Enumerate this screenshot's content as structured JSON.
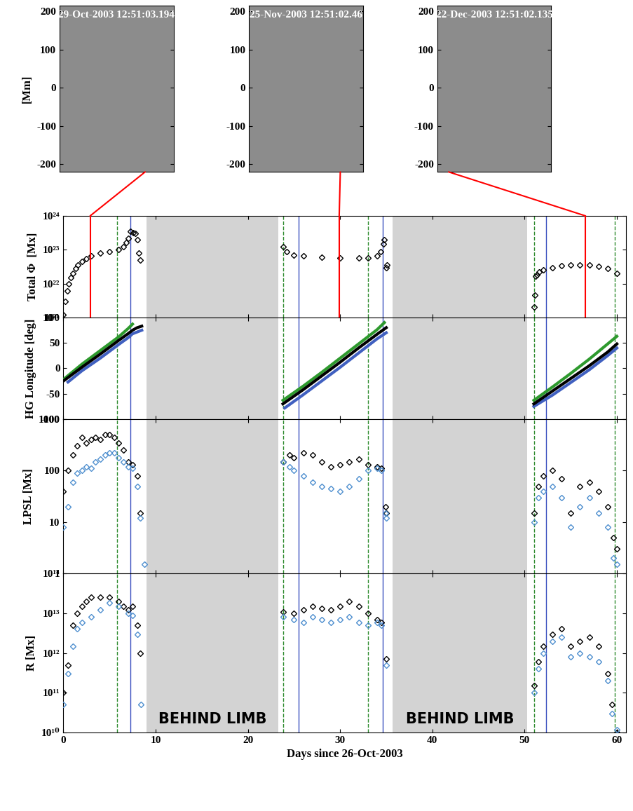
{
  "chart_data": [
    {
      "type": "image",
      "title": "29-Oct-2003 12:51:03.194",
      "ylabel": "[Mm]",
      "x": 2.9,
      "color": "red",
      "xlim": [
        -220,
        215
      ],
      "xticks": [],
      "ylim": [
        -220,
        215
      ],
      "yticks": [
        -200,
        -100,
        0,
        100,
        200
      ],
      "tick_labels": "y"
    },
    {
      "type": "image",
      "title": "25-Nov-2003 12:51:02.46",
      "x": 29.9,
      "color": "red",
      "xlim": [
        -220,
        215
      ],
      "xticks": [],
      "ylim": [
        -220,
        215
      ],
      "yticks": [
        -200,
        -100,
        0,
        100,
        200
      ],
      "tick_labels": "y"
    },
    {
      "type": "image",
      "title": "22-Dec-2003 12:51:02.135",
      "x": 56.6,
      "color": "red",
      "xlim": [
        -220,
        215
      ],
      "xticks": [],
      "ylim": [
        -220,
        215
      ],
      "yticks": [
        -200,
        -100,
        0,
        100,
        200
      ],
      "tick_labels": "y"
    },
    {
      "type": "scatter",
      "ylabel": "Total Φ  [Mx]",
      "log": "y",
      "tick_labels": "y",
      "xlim": [
        0,
        61
      ],
      "xticks": [
        0,
        10,
        20,
        30,
        40,
        50,
        60
      ],
      "ylim": [
        1e+21,
        1e+24
      ],
      "yticks": [
        {
          "value": 1e+21,
          "label": "10²¹"
        },
        {
          "value": 1e+22,
          "label": "10²²"
        },
        {
          "value": 1e+23,
          "label": "10²³"
        },
        {
          "value": 1e+24,
          "label": "10²⁴"
        }
      ],
      "shaded": [
        {
          "x": [
            9,
            23.3
          ]
        },
        {
          "x": [
            35.7,
            50.3
          ]
        }
      ],
      "vlines": [
        {
          "x": [
            5.8,
            23.8,
            33.0,
            51.0,
            59.8
          ],
          "color": "#2e8b2e",
          "line_style": "dashed"
        },
        {
          "x": [
            7.3,
            25.5,
            34.6,
            52.3
          ],
          "color": "#3a4fbf",
          "line_style": "solid"
        }
      ],
      "series": [
        {
          "color": "#000000",
          "marker": "diamond",
          "x": [
            0,
            0.2,
            0.4,
            0.6,
            0.8,
            1.0,
            1.3,
            1.6,
            2.0,
            2.5,
            3.0,
            4.0,
            5.0,
            6.0,
            6.5,
            6.8,
            7.0,
            7.3,
            7.6,
            7.8,
            8.0,
            8.2,
            8.3,
            23.8,
            24.2,
            25.0,
            26.0,
            28.0,
            30.0,
            32.0,
            33.0,
            34.0,
            34.4,
            34.7,
            34.8,
            35.0,
            35.1,
            51.0,
            51.1,
            51.2,
            51.3,
            51.6,
            52.0,
            53.0,
            54.0,
            55.0,
            56.0,
            57.0,
            58.0,
            59.0,
            60.0
          ],
          "values": [
            1.2e+21,
            3e+21,
            6e+21,
            1e+22,
            1.5e+22,
            2e+22,
            2.8e+22,
            3.5e+22,
            4.5e+22,
            5.5e+22,
            6.5e+22,
            8e+22,
            9e+22,
            1e+23,
            1.2e+23,
            1.6e+23,
            2.2e+23,
            3.5e+23,
            3.2e+23,
            3e+23,
            2e+23,
            8e+22,
            5e+22,
            1.2e+23,
            9e+22,
            7e+22,
            6.5e+22,
            6e+22,
            5.8e+22,
            5.8e+22,
            5.8e+22,
            6.5e+22,
            9e+22,
            1.5e+23,
            2e+23,
            3e+22,
            3.5e+22,
            2e+21,
            4.5e+21,
            1.7e+22,
            1.8e+22,
            2.2e+22,
            2.5e+22,
            3e+22,
            3.4e+22,
            3.5e+22,
            3.5e+22,
            3.5e+22,
            3.2e+22,
            2.8e+22,
            2e+22
          ]
        }
      ]
    },
    {
      "type": "line",
      "ylabel": "HG Longitude [deg]",
      "tick_labels": "y",
      "xlim": [
        0,
        61
      ],
      "xticks": [
        0,
        10,
        20,
        30,
        40,
        50,
        60
      ],
      "ylim": [
        -100,
        100
      ],
      "yticks": [
        -100,
        -50,
        0,
        50,
        100
      ],
      "shaded": [
        {
          "x": [
            9,
            23.3
          ]
        },
        {
          "x": [
            35.7,
            50.3
          ]
        }
      ],
      "vlines": [
        {
          "x": [
            5.8,
            23.8,
            33.0,
            51.0,
            59.8
          ],
          "color": "#2e8b2e",
          "line_style": "dashed"
        },
        {
          "x": [
            7.3,
            25.5,
            34.6,
            52.3
          ],
          "color": "#3a4fbf",
          "line_style": "solid"
        }
      ],
      "series": [
        {
          "color": "#2e9a2e",
          "x": [
            0,
            2,
            4,
            6,
            7,
            7.5
          ],
          "values": [
            -22,
            8,
            35,
            62,
            78,
            87
          ]
        },
        {
          "color": "#4060c0",
          "x": [
            0.5,
            2,
            4,
            6,
            7,
            7.5,
            8.5
          ],
          "values": [
            -27,
            -5,
            20,
            47,
            60,
            68,
            75
          ]
        },
        {
          "color": "#000000",
          "x": [
            0,
            2,
            4,
            6,
            7,
            7.5,
            8,
            8.5
          ],
          "values": [
            -25,
            2,
            28,
            55,
            68,
            75,
            80,
            83
          ]
        },
        {
          "color": "#2e9a2e",
          "x": [
            23.8,
            26,
            28,
            30,
            32,
            34,
            34.8
          ],
          "values": [
            -63,
            -35,
            -8,
            20,
            48,
            76,
            90
          ]
        },
        {
          "color": "#4060c0",
          "x": [
            24,
            26,
            28,
            30,
            32,
            34,
            35
          ],
          "values": [
            -78,
            -52,
            -25,
            2,
            30,
            58,
            70
          ]
        },
        {
          "color": "#000000",
          "x": [
            23.8,
            26,
            28,
            30,
            32,
            34,
            35
          ],
          "values": [
            -70,
            -42,
            -15,
            12,
            40,
            67,
            80
          ]
        },
        {
          "color": "#2e9a2e",
          "x": [
            51,
            53,
            55,
            57,
            59,
            60
          ],
          "values": [
            -63,
            -37,
            -10,
            18,
            48,
            63
          ]
        },
        {
          "color": "#4060c0",
          "x": [
            51,
            53,
            55,
            57,
            59,
            60
          ],
          "values": [
            -75,
            -53,
            -28,
            -3,
            25,
            40
          ]
        },
        {
          "color": "#000000",
          "x": [
            51,
            53,
            55,
            57,
            59,
            60
          ],
          "values": [
            -70,
            -45,
            -20,
            5,
            32,
            48
          ]
        }
      ]
    },
    {
      "type": "scatter",
      "ylabel": "LPSL [Mx]",
      "log": "y",
      "tick_labels": "y",
      "xlim": [
        0,
        61
      ],
      "xticks": [
        0,
        10,
        20,
        30,
        40,
        50,
        60
      ],
      "ylim": [
        1,
        1000
      ],
      "yticks": [
        1,
        10,
        100,
        1000
      ],
      "shaded": [
        {
          "x": [
            9,
            23.3
          ]
        },
        {
          "x": [
            35.7,
            50.3
          ]
        }
      ],
      "vlines": [
        {
          "x": [
            5.8,
            23.8,
            33.0,
            51.0,
            59.8
          ],
          "color": "#2e8b2e",
          "line_style": "dashed"
        },
        {
          "x": [
            7.3,
            25.5,
            34.6,
            52.3
          ],
          "color": "#3a4fbf",
          "line_style": "solid"
        }
      ],
      "series": [
        {
          "color": "#000000",
          "marker": "diamond",
          "x": [
            0,
            0.5,
            1,
            1.5,
            2,
            2.5,
            3,
            3.5,
            4,
            4.5,
            5,
            5.5,
            6,
            6.5,
            7,
            7.5,
            8,
            8.3,
            23.8,
            24.5,
            25,
            26,
            27,
            28,
            29,
            30,
            31,
            32,
            33,
            34,
            34.5,
            34.9,
            35,
            51,
            51.5,
            52,
            53,
            54,
            55,
            56,
            57,
            58,
            59,
            59.6,
            60
          ],
          "values": [
            40,
            100,
            200,
            300,
            450,
            350,
            400,
            450,
            400,
            500,
            500,
            450,
            350,
            250,
            150,
            130,
            80,
            15,
            150,
            200,
            180,
            220,
            200,
            150,
            120,
            130,
            150,
            170,
            130,
            120,
            110,
            20,
            15,
            15,
            50,
            80,
            100,
            70,
            15,
            50,
            60,
            40,
            20,
            5,
            3
          ]
        },
        {
          "color": "#4f8fcf",
          "marker": "diamond",
          "x": [
            0,
            0.5,
            1,
            1.5,
            2,
            2.5,
            3,
            3.5,
            4,
            4.5,
            5,
            5.5,
            6,
            6.5,
            7,
            7.5,
            8,
            8.3,
            8.8,
            23.8,
            24.5,
            25,
            26,
            27,
            28,
            29,
            30,
            31,
            32,
            33,
            34,
            34.5,
            34.9,
            35,
            51,
            51.5,
            52,
            53,
            54,
            55,
            56,
            57,
            58,
            59,
            59.6,
            60
          ],
          "values": [
            8,
            20,
            60,
            90,
            100,
            120,
            110,
            150,
            170,
            200,
            220,
            220,
            180,
            150,
            120,
            110,
            50,
            12,
            1.5,
            150,
            120,
            100,
            80,
            60,
            50,
            45,
            40,
            50,
            70,
            100,
            110,
            100,
            15,
            12,
            10,
            30,
            40,
            50,
            30,
            8,
            20,
            30,
            15,
            8,
            2,
            1.5
          ]
        }
      ]
    },
    {
      "type": "scatter",
      "ylabel": "R [Mx]",
      "xlabel": "Days since 26-Oct-2003",
      "log": "y",
      "tick_labels": true,
      "xlim": [
        0,
        61
      ],
      "xticks": [
        0,
        10,
        20,
        30,
        40,
        50,
        60
      ],
      "ylim": [
        10000000000.0,
        100000000000000.0
      ],
      "yticks": [
        {
          "value": 10000000000.0,
          "label": "10¹⁰"
        },
        {
          "value": 100000000000.0,
          "label": "10¹¹"
        },
        {
          "value": 1000000000000.0,
          "label": "10¹²"
        },
        {
          "value": 10000000000000.0,
          "label": "10¹³"
        },
        {
          "value": 100000000000000.0,
          "label": "10¹⁴"
        }
      ],
      "shaded": [
        {
          "x": [
            9,
            23.3
          ],
          "label": "BEHIND LIMB"
        },
        {
          "x": [
            35.7,
            50.3
          ],
          "label": "BEHIND LIMB"
        }
      ],
      "vlines": [
        {
          "x": [
            5.8,
            23.8,
            33.0,
            51.0,
            59.8
          ],
          "color": "#2e8b2e",
          "line_style": "dashed"
        },
        {
          "x": [
            7.3,
            25.5,
            34.6,
            52.3
          ],
          "color": "#3a4fbf",
          "line_style": "solid"
        }
      ],
      "series": [
        {
          "color": "#000000",
          "marker": "diamond",
          "x": [
            0,
            0.5,
            1,
            1.5,
            2,
            2.5,
            3,
            4,
            5,
            6,
            6.5,
            7,
            7.5,
            8,
            8.3,
            23.8,
            25,
            26,
            27,
            28,
            29,
            30,
            31,
            32,
            33,
            34,
            34.5,
            35,
            51,
            51.5,
            52,
            53,
            54,
            55,
            56,
            57,
            58,
            59,
            59.5,
            60
          ],
          "values": [
            100000000000.0,
            500000000000.0,
            5000000000000.0,
            10000000000000.0,
            15000000000000.0,
            20000000000000.0,
            25000000000000.0,
            25000000000000.0,
            25000000000000.0,
            20000000000000.0,
            15000000000000.0,
            12000000000000.0,
            15000000000000.0,
            5000000000000.0,
            1000000000000.0,
            11000000000000.0,
            10000000000000.0,
            12000000000000.0,
            15000000000000.0,
            13000000000000.0,
            12000000000000.0,
            15000000000000.0,
            20000000000000.0,
            15000000000000.0,
            10000000000000.0,
            7000000000000.0,
            6000000000000.0,
            700000000000.0,
            150000000000.0,
            600000000000.0,
            1500000000000.0,
            3000000000000.0,
            4000000000000.0,
            1500000000000.0,
            2000000000000.0,
            2500000000000.0,
            1500000000000.0,
            300000000000.0,
            50000000000.0,
            10000000000.0
          ]
        },
        {
          "color": "#4f8fcf",
          "marker": "diamond",
          "x": [
            0,
            0.5,
            1,
            1.5,
            2,
            3,
            4,
            5,
            6,
            7,
            7.5,
            8,
            8.4,
            23.8,
            25,
            26,
            27,
            28,
            29,
            30,
            31,
            32,
            33,
            34,
            34.5,
            35,
            51,
            51.5,
            52,
            53,
            54,
            55,
            56,
            57,
            58,
            59,
            59.5,
            60
          ],
          "values": [
            50000000000.0,
            300000000000.0,
            1500000000000.0,
            4000000000000.0,
            6000000000000.0,
            8000000000000.0,
            12000000000000.0,
            18000000000000.0,
            15000000000000.0,
            10000000000000.0,
            9000000000000.0,
            3000000000000.0,
            50000000000.0,
            8000000000000.0,
            7000000000000.0,
            6000000000000.0,
            8000000000000.0,
            7000000000000.0,
            6000000000000.0,
            7000000000000.0,
            8000000000000.0,
            6000000000000.0,
            5000000000000.0,
            6000000000000.0,
            5000000000000.0,
            500000000000.0,
            100000000000.0,
            400000000000.0,
            1000000000000.0,
            2000000000000.0,
            2500000000000.0,
            800000000000.0,
            1000000000000.0,
            800000000000.0,
            600000000000.0,
            200000000000.0,
            30000000000.0,
            12000000000.0
          ]
        }
      ]
    }
  ]
}
